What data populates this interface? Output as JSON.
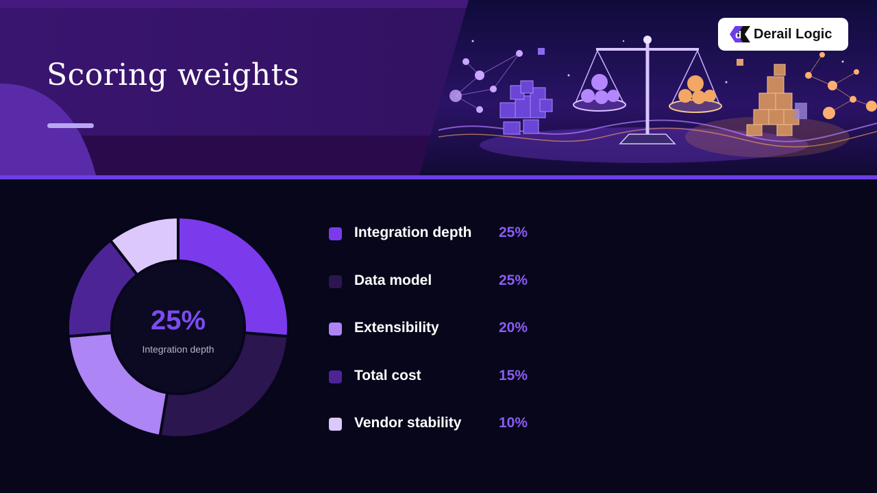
{
  "slide": {
    "title": "Scoring weights",
    "brand": "Derail Logic",
    "logo_icon": "derail-logic-logo-icon",
    "illustration_icon": "balance-scale-illustration"
  },
  "center": {
    "value": "25%",
    "label": "Integration depth"
  },
  "chart_data": {
    "type": "pie",
    "variant": "donut",
    "categories": [
      "Integration depth",
      "Data model",
      "Extensibility",
      "Total cost",
      "Vendor stability"
    ],
    "values": [
      25,
      25,
      20,
      15,
      10
    ],
    "value_labels": [
      "25%",
      "25%",
      "20%",
      "15%",
      "10%"
    ],
    "colors": [
      "#7c3aed",
      "#2b1650",
      "#ad85f5",
      "#4d2496",
      "#dcc8fb"
    ],
    "legend": "right",
    "value_color": "#8a5cf5"
  },
  "colors": {
    "background": "#07061a",
    "header": "#2a0e4f",
    "accent": "#6d3ee8"
  }
}
